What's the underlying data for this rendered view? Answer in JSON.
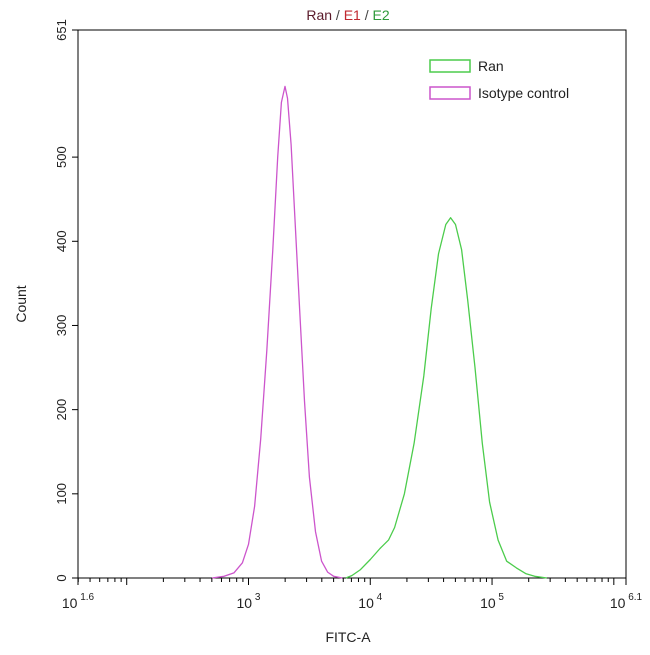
{
  "chart_data": {
    "type": "line",
    "title_parts": [
      {
        "text": "Ran",
        "color": "#5a1a2a"
      },
      {
        "text": " / ",
        "color": "#444444"
      },
      {
        "text": "E1",
        "color": "#c0282f"
      },
      {
        "text": " / ",
        "color": "#444444"
      },
      {
        "text": "E2",
        "color": "#2e9a3a"
      }
    ],
    "xlabel": "FITC-A",
    "ylabel": "Count",
    "xscale": "log10",
    "xlim": [
      1.6,
      6.1
    ],
    "ylim": [
      0,
      651
    ],
    "x_ticks": [
      {
        "exp": 1.6,
        "base": "10",
        "sup": "1.6"
      },
      {
        "exp": 3,
        "base": "10",
        "sup": "3"
      },
      {
        "exp": 4,
        "base": "10",
        "sup": "4"
      },
      {
        "exp": 5,
        "base": "10",
        "sup": "5"
      },
      {
        "exp": 6.1,
        "base": "10",
        "sup": "6.1"
      }
    ],
    "y_ticks": [
      0,
      100,
      200,
      300,
      400,
      500,
      651
    ],
    "legend": {
      "position": "top-right",
      "entries": [
        {
          "label": "Ran",
          "color": "#4ccc4c"
        },
        {
          "label": "Isotype control",
          "color": "#cc55cc"
        }
      ]
    },
    "series": [
      {
        "name": "Isotype control",
        "color": "#cc55cc",
        "points": [
          [
            2.7,
            0
          ],
          [
            2.8,
            2
          ],
          [
            2.88,
            6
          ],
          [
            2.95,
            18
          ],
          [
            3.0,
            40
          ],
          [
            3.05,
            85
          ],
          [
            3.1,
            165
          ],
          [
            3.15,
            270
          ],
          [
            3.2,
            390
          ],
          [
            3.24,
            500
          ],
          [
            3.27,
            565
          ],
          [
            3.3,
            584
          ],
          [
            3.32,
            570
          ],
          [
            3.35,
            515
          ],
          [
            3.38,
            430
          ],
          [
            3.42,
            320
          ],
          [
            3.46,
            210
          ],
          [
            3.5,
            120
          ],
          [
            3.55,
            55
          ],
          [
            3.6,
            20
          ],
          [
            3.65,
            7
          ],
          [
            3.7,
            2
          ],
          [
            3.77,
            0
          ]
        ]
      },
      {
        "name": "Ran",
        "color": "#4ccc4c",
        "points": [
          [
            3.8,
            0
          ],
          [
            3.85,
            3
          ],
          [
            3.92,
            10
          ],
          [
            4.0,
            22
          ],
          [
            4.08,
            35
          ],
          [
            4.15,
            45
          ],
          [
            4.2,
            60
          ],
          [
            4.28,
            100
          ],
          [
            4.36,
            160
          ],
          [
            4.44,
            240
          ],
          [
            4.5,
            320
          ],
          [
            4.56,
            385
          ],
          [
            4.62,
            420
          ],
          [
            4.66,
            428
          ],
          [
            4.7,
            420
          ],
          [
            4.75,
            390
          ],
          [
            4.8,
            330
          ],
          [
            4.86,
            250
          ],
          [
            4.92,
            160
          ],
          [
            4.98,
            90
          ],
          [
            5.05,
            45
          ],
          [
            5.12,
            20
          ],
          [
            5.2,
            12
          ],
          [
            5.28,
            5
          ],
          [
            5.35,
            2
          ],
          [
            5.45,
            0
          ]
        ]
      }
    ],
    "grid": false
  }
}
